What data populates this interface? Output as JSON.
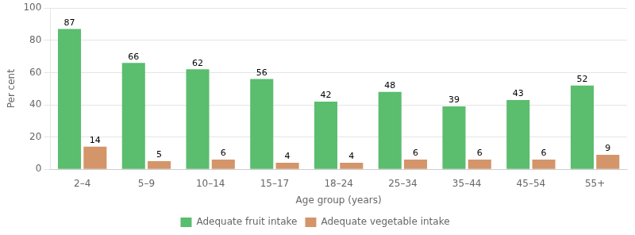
{
  "chart_data": {
    "type": "bar",
    "categories": [
      "2–4",
      "5–9",
      "10–14",
      "15–17",
      "18–24",
      "25–34",
      "35–44",
      "45–54",
      "55+"
    ],
    "series": [
      {
        "name": "Adequate fruit intake",
        "color": "#5BBD6E",
        "values": [
          87,
          66,
          62,
          56,
          42,
          48,
          39,
          43,
          52
        ]
      },
      {
        "name": "Adequate vegetable intake",
        "color": "#D4956A",
        "values": [
          14,
          5,
          6,
          4,
          4,
          6,
          6,
          6,
          9
        ]
      }
    ],
    "x_label": "Age group (years)",
    "y_label": "Per cent",
    "ylim": [
      0,
      100
    ],
    "yticks": [
      0,
      20,
      40,
      60,
      80,
      100
    ],
    "grid": true,
    "legend": "bottom",
    "data_labels": true
  }
}
